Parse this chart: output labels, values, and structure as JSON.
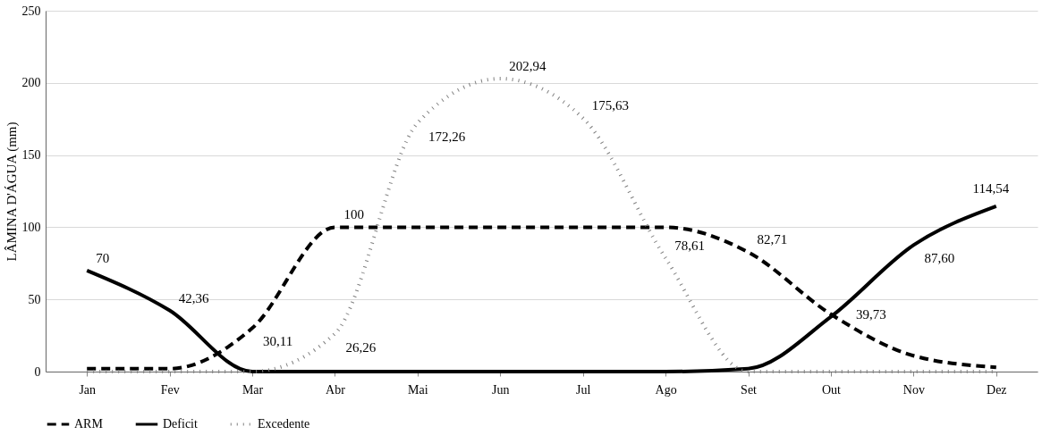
{
  "chart_data": {
    "type": "line",
    "ylabel": "LÂMINA D'ÁGUA (mm)",
    "categories": [
      "Jan",
      "Fev",
      "Mar",
      "Abr",
      "Mai",
      "Jun",
      "Jul",
      "Ago",
      "Set",
      "Out",
      "Nov",
      "Dez"
    ],
    "series": [
      {
        "name": "ARM",
        "color": "#000000",
        "line_style": "dashed",
        "values": [
          2,
          2,
          30.11,
          100,
          100,
          100,
          100,
          100,
          82.71,
          39.73,
          11,
          3
        ],
        "value_labels": [
          null,
          null,
          "30,11",
          "100",
          null,
          null,
          null,
          null,
          "82,71",
          "39,73",
          null,
          null
        ]
      },
      {
        "name": "Deficit",
        "color": "#000000",
        "line_style": "solid",
        "values": [
          70,
          42.36,
          0,
          0,
          0,
          0,
          0,
          0,
          2,
          38,
          87.6,
          114.54
        ],
        "value_labels": [
          "70",
          "42,36",
          null,
          null,
          null,
          null,
          null,
          null,
          null,
          null,
          "87,60",
          "114,54"
        ]
      },
      {
        "name": "Excedente",
        "color": "#808080",
        "line_style": "dotted",
        "values": [
          0,
          0,
          0,
          26.26,
          172.26,
          202.94,
          175.63,
          78.61,
          0,
          0,
          0,
          0
        ],
        "value_labels": [
          null,
          null,
          null,
          "26,26",
          "172,26",
          "202,94",
          "175,63",
          "78,61",
          null,
          null,
          null,
          null
        ]
      }
    ],
    "ylim": [
      0,
      250
    ],
    "yticks": [
      0,
      50,
      100,
      150,
      200,
      250
    ],
    "grid": "y",
    "legend": "bottom"
  }
}
